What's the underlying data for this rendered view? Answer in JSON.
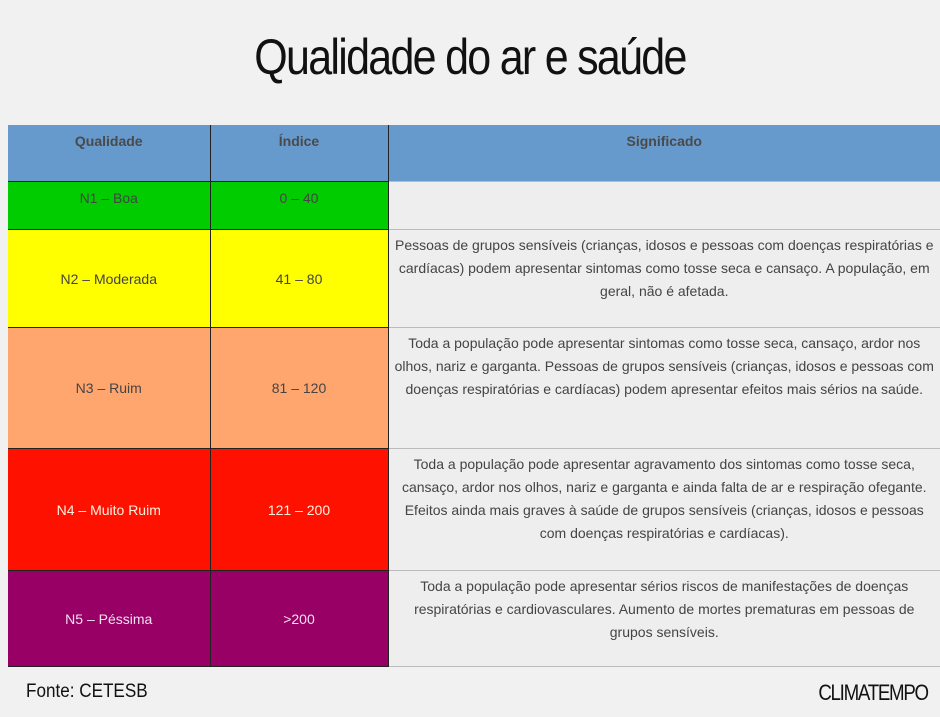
{
  "title": "Qualidade do ar e saúde",
  "table": {
    "headers": [
      "Qualidade",
      "Índice",
      "Significado"
    ],
    "rows": [
      {
        "quality": "N1 – Boa",
        "index": "0 – 40",
        "meaning": "",
        "color": "#00cc00"
      },
      {
        "quality": "N2 – Moderada",
        "index": "41 – 80",
        "meaning": "Pessoas de grupos sensíveis (crianças, idosos e pessoas com doenças respiratórias e cardíacas) podem apresentar sintomas como tosse seca e cansaço. A população, em geral, não é afetada.",
        "color": "#ffff00"
      },
      {
        "quality": "N3 – Ruim",
        "index": "81 – 120",
        "meaning": "Toda a população pode apresentar sintomas como tosse seca, cansaço, ardor nos olhos, nariz e garganta. Pessoas de grupos sensíveis (crianças, idosos e pessoas com doenças respiratórias e cardíacas) podem apresentar efeitos mais sérios na saúde.",
        "color": "#ffa66f"
      },
      {
        "quality": "N4 – Muito Ruim",
        "index": "121 – 200",
        "meaning": "Toda a população pode apresentar agravamento dos sintomas como tosse seca, cansaço, ardor nos olhos, nariz e garganta e ainda falta de ar e respiração ofegante. Efeitos ainda mais graves à saúde de grupos sensíveis (crianças, idosos e pessoas com doenças respiratórias e cardíacas).",
        "color": "#ff1100"
      },
      {
        "quality": "N5 – Péssima",
        "index": ">200",
        "meaning": "Toda a população pode apresentar sérios riscos de manifestações de doenças respiratórias e cardiovasculares. Aumento de mortes prematuras em pessoas de grupos sensíveis.",
        "color": "#990066"
      }
    ]
  },
  "footer": {
    "source": "Fonte: CETESB",
    "logo": "CLIMATEMPO"
  }
}
